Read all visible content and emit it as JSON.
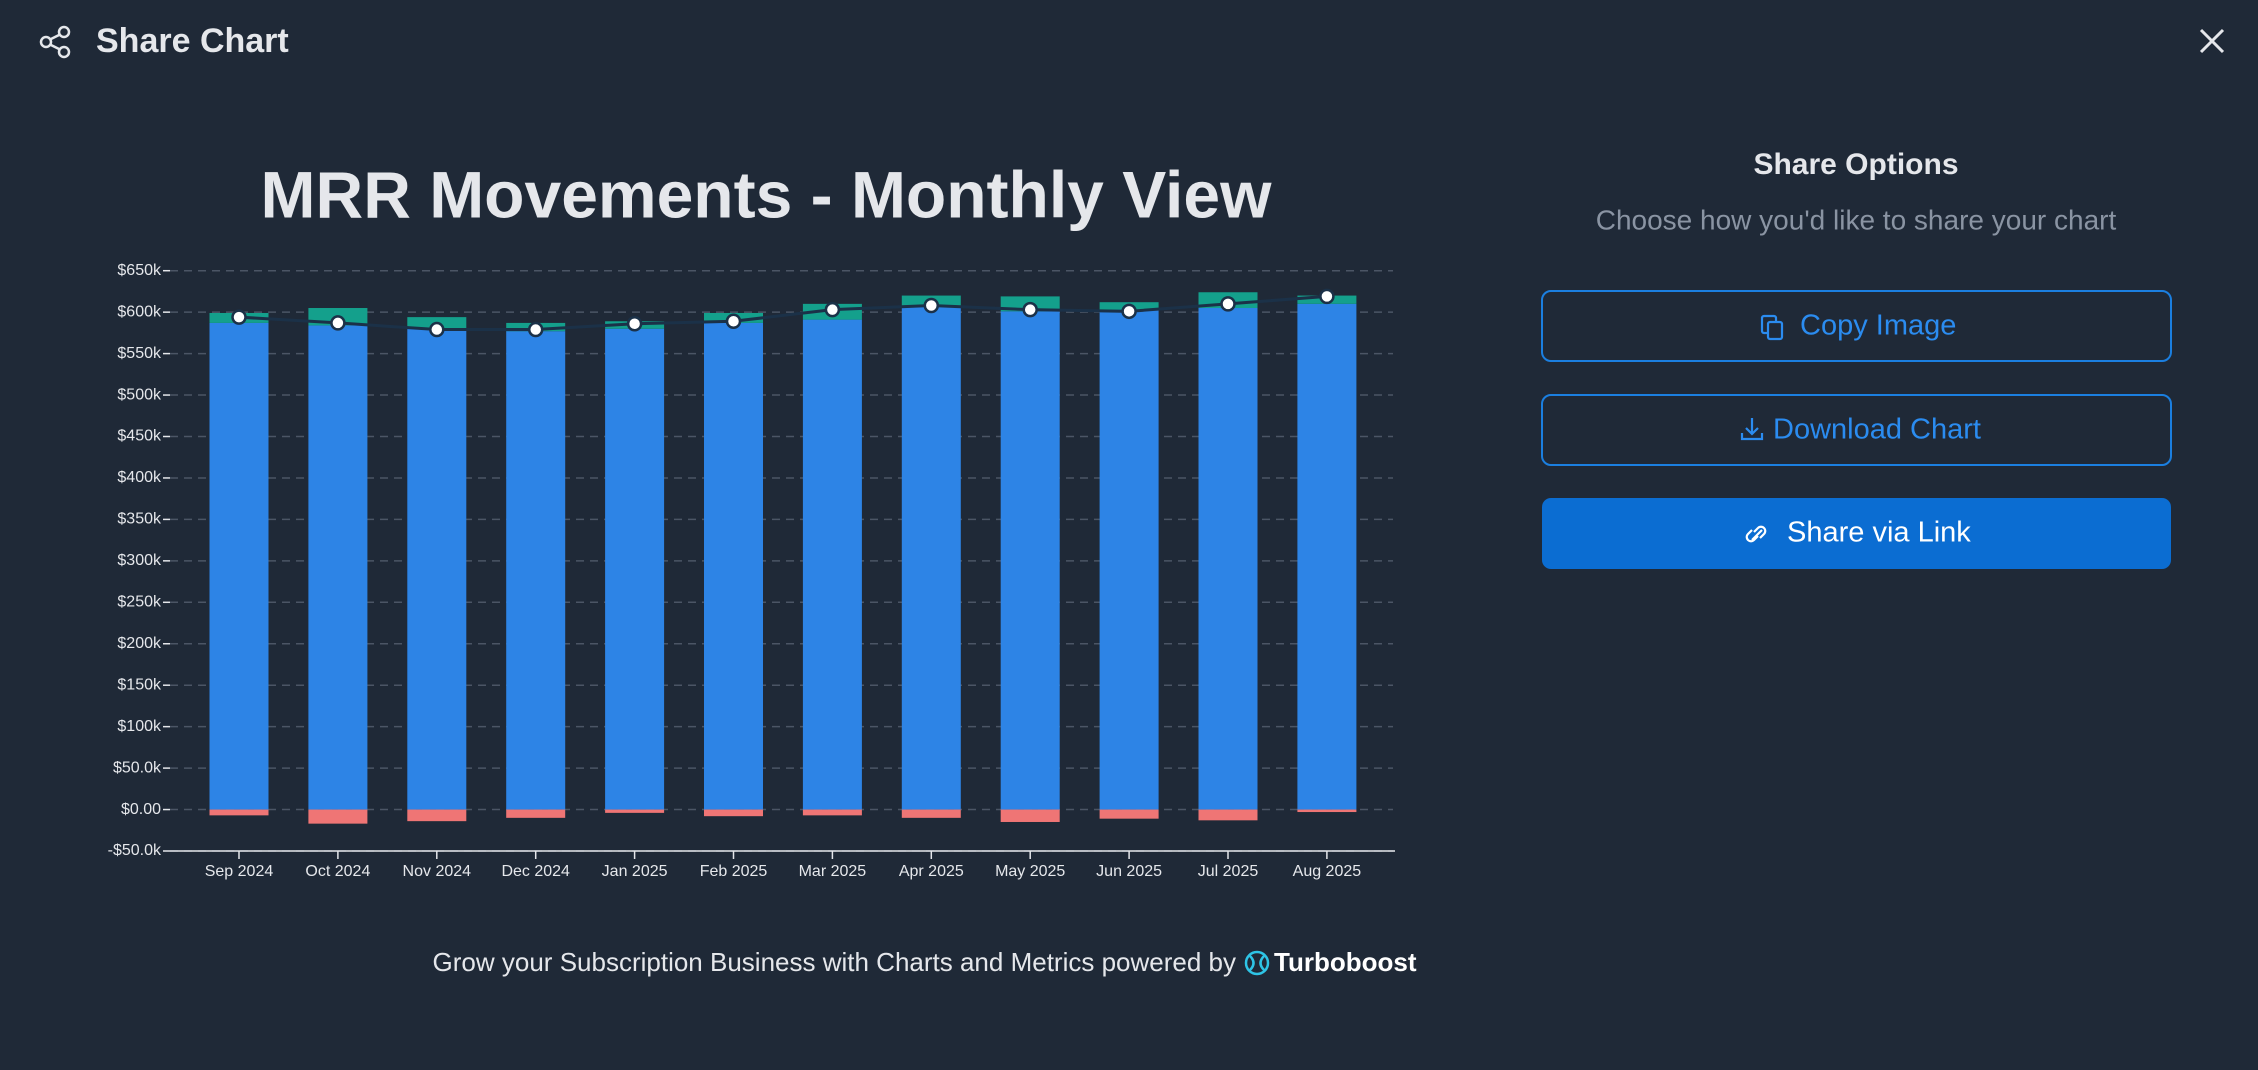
{
  "header": {
    "title": "Share Chart"
  },
  "chart_data": {
    "type": "bar",
    "title": "MRR Movements - Monthly View",
    "stacked": true,
    "grid": true,
    "categories": [
      "Sep 2024",
      "Oct 2024",
      "Nov 2024",
      "Dec 2024",
      "Jan 2025",
      "Feb 2025",
      "Mar 2025",
      "Apr 2025",
      "May 2025",
      "Jun 2025",
      "Jul 2025",
      "Aug 2025"
    ],
    "series": [
      {
        "color": "#2d84e6",
        "values": [
          587,
          584,
          580,
          577,
          580,
          587,
          591,
          607,
          601,
          603,
          605,
          610
        ]
      },
      {
        "color": "#14a08c",
        "values": [
          12,
          21,
          14,
          10,
          9,
          12,
          19,
          13,
          18,
          9,
          19,
          10
        ]
      },
      {
        "color": "#ef7575",
        "values": [
          -7,
          -17,
          -14,
          -10,
          -4,
          -8,
          -7,
          -10,
          -15,
          -11,
          -13,
          -3
        ]
      },
      {
        "type": "line",
        "color": "#1b3148",
        "values": [
          594,
          587,
          579,
          579,
          586,
          589,
          603,
          608,
          603,
          601,
          610,
          619
        ]
      }
    ],
    "ylim": [
      -50,
      650
    ],
    "yticks": [
      {
        "value": -50,
        "label": "-$50.0k"
      },
      {
        "value": 0,
        "label": "$0.00"
      },
      {
        "value": 50,
        "label": "$50.0k"
      },
      {
        "value": 100,
        "label": "$100k"
      },
      {
        "value": 150,
        "label": "$150k"
      },
      {
        "value": 200,
        "label": "$200k"
      },
      {
        "value": 250,
        "label": "$250k"
      },
      {
        "value": 300,
        "label": "$300k"
      },
      {
        "value": 350,
        "label": "$350k"
      },
      {
        "value": 400,
        "label": "$400k"
      },
      {
        "value": 450,
        "label": "$450k"
      },
      {
        "value": 500,
        "label": "$500k"
      },
      {
        "value": 550,
        "label": "$550k"
      },
      {
        "value": 600,
        "label": "$600k"
      },
      {
        "value": 650,
        "label": "$650k"
      }
    ]
  },
  "share_panel": {
    "title": "Share Options",
    "subtitle": "Choose how you'd like to share your chart",
    "buttons": [
      "Copy Image",
      "Download Chart",
      "Share via Link"
    ]
  },
  "footer": {
    "text": "Grow your Subscription Business with Charts and Metrics powered by",
    "brand": "Turboboost"
  }
}
